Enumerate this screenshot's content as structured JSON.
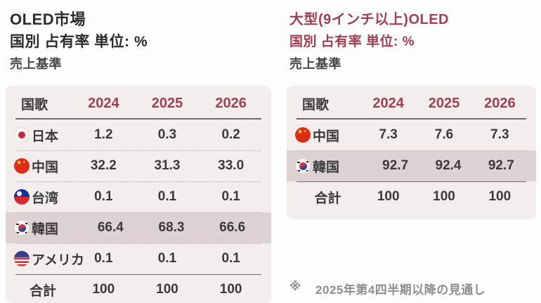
{
  "left_panel": {
    "title": "OLED市場",
    "subtitle": "国別 占有率 単位: %",
    "basis": "売上基準",
    "table": {
      "header": {
        "country": "国歌",
        "years": [
          "2024",
          "2025",
          "2026"
        ]
      },
      "rows": [
        {
          "flag": "japan",
          "name": "日本",
          "values": [
            "1.2",
            "0.3",
            "0.2"
          ],
          "highlight": false
        },
        {
          "flag": "china",
          "name": "中国",
          "values": [
            "32.2",
            "31.3",
            "33.0"
          ],
          "highlight": false
        },
        {
          "flag": "taiwan",
          "name": "台湾",
          "values": [
            "0.1",
            "0.1",
            "0.1"
          ],
          "highlight": false
        },
        {
          "flag": "korea",
          "name": "韓国",
          "values": [
            "66.4",
            "68.3",
            "66.6"
          ],
          "highlight": true
        },
        {
          "flag": "usa",
          "name": "アメリカ",
          "values": [
            "0.1",
            "0.1",
            "0.1"
          ],
          "highlight": false
        }
      ],
      "total": {
        "label": "合計",
        "values": [
          "100",
          "100",
          "100"
        ]
      }
    }
  },
  "right_panel": {
    "title": "大型(9インチ以上)OLED",
    "subtitle": "国別 占有率 単位: %",
    "basis": "売上基準",
    "table": {
      "header": {
        "country": "国歌",
        "years": [
          "2024",
          "2025",
          "2026"
        ]
      },
      "rows": [
        {
          "flag": "china",
          "name": "中国",
          "values": [
            "7.3",
            "7.6",
            "7.3"
          ],
          "highlight": false
        },
        {
          "flag": "korea",
          "name": "韓国",
          "values": [
            "92.7",
            "92.4",
            "92.7"
          ],
          "highlight": true
        }
      ],
      "total": {
        "label": "合計",
        "values": [
          "100",
          "100",
          "100"
        ]
      }
    },
    "footnote": {
      "marker": "※",
      "text": "2025年第4四半期以降の見通し"
    }
  },
  "colors": {
    "page_bg": "#fefdfd",
    "accent_maroon": "#9e4054",
    "table_bg": "#f3eeec",
    "highlight_row_bg": "#ded3d3",
    "text_dark": "#3b3a39",
    "line_solid": "#6d6968",
    "line_dotted": "#b5aca9",
    "note_gray": "#8f8d8c"
  },
  "chart_data": [
    {
      "type": "table",
      "title": "OLED市場 国別 占有率 単位: % 売上基準",
      "columns": [
        "国歌",
        "2024",
        "2025",
        "2026"
      ],
      "rows": [
        [
          "日本",
          1.2,
          0.3,
          0.2
        ],
        [
          "中国",
          32.2,
          31.3,
          33.0
        ],
        [
          "台湾",
          0.1,
          0.1,
          0.1
        ],
        [
          "韓国",
          66.4,
          68.3,
          66.6
        ],
        [
          "アメリカ",
          0.1,
          0.1,
          0.1
        ],
        [
          "合計",
          100,
          100,
          100
        ]
      ],
      "highlighted_row": "韓国"
    },
    {
      "type": "table",
      "title": "大型(9インチ以上)OLED 国別 占有率 単位: % 売上基準",
      "columns": [
        "国歌",
        "2024",
        "2025",
        "2026"
      ],
      "rows": [
        [
          "中国",
          7.3,
          7.6,
          7.3
        ],
        [
          "韓国",
          92.7,
          92.4,
          92.7
        ],
        [
          "合計",
          100,
          100,
          100
        ]
      ],
      "highlighted_row": "韓国",
      "note": "※ 2025年第4四半期以降の見通し"
    }
  ]
}
